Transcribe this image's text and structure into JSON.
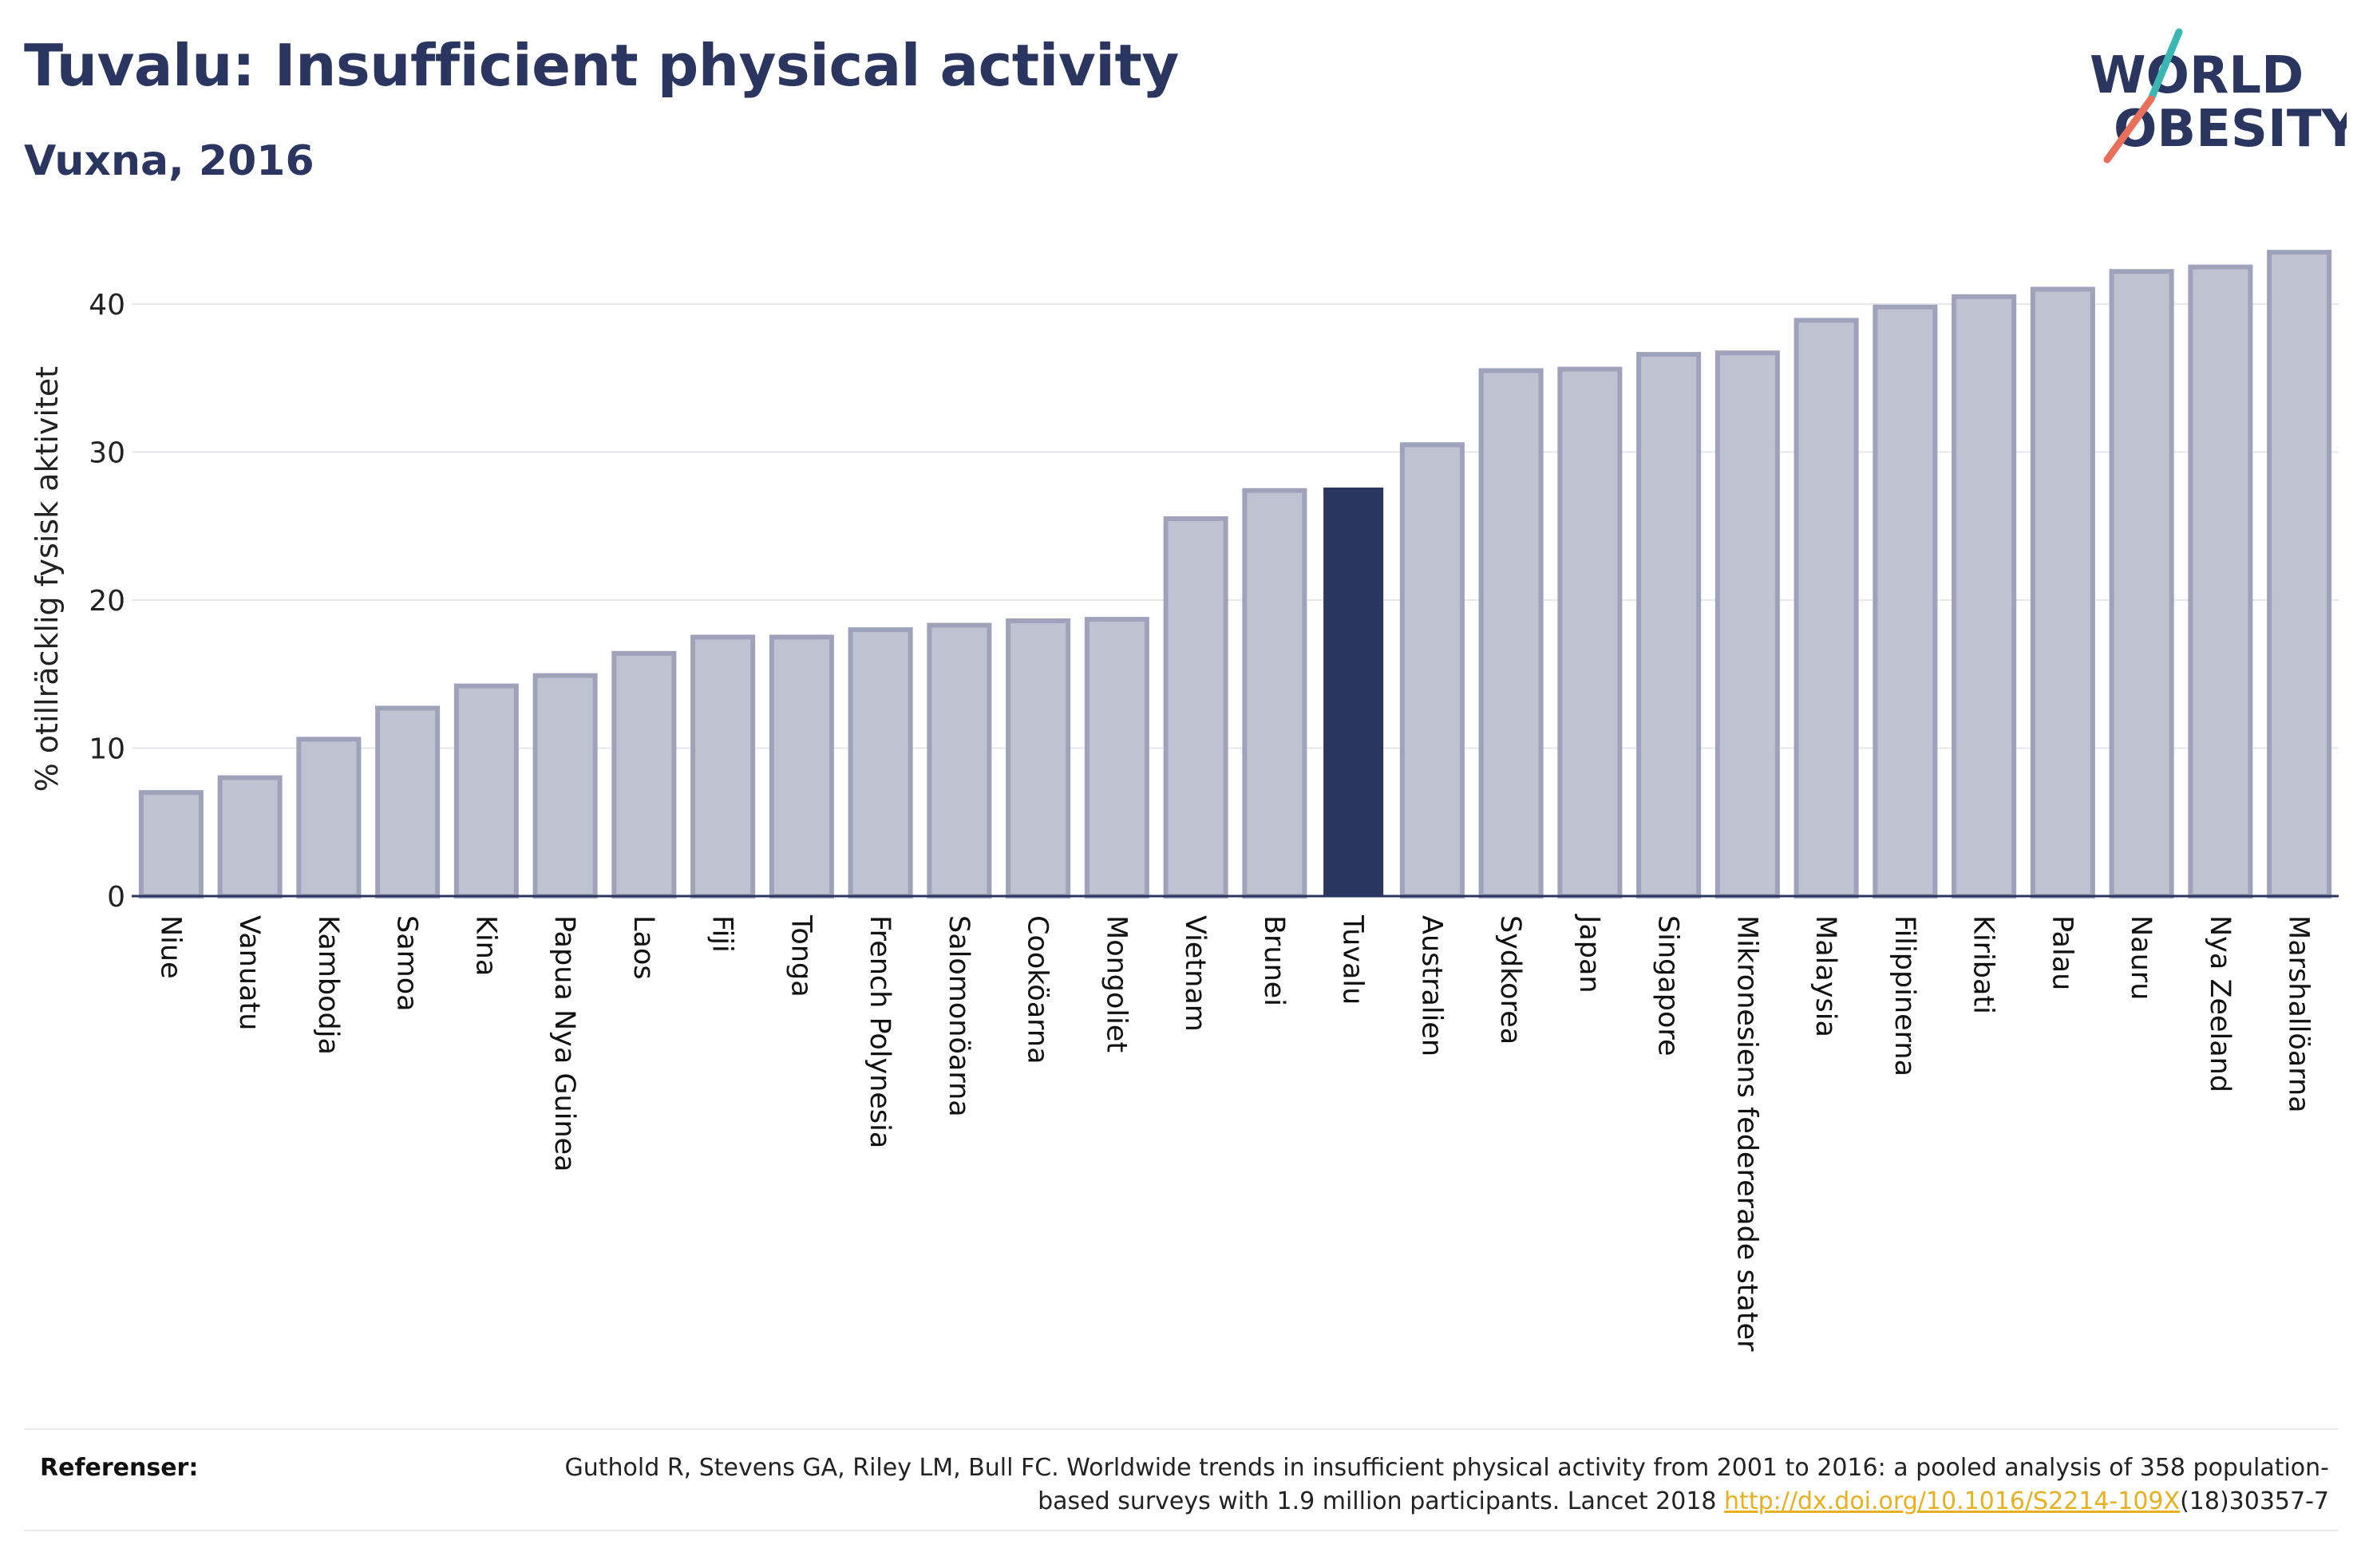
{
  "header": {
    "title": "Tuvalu: Insufficient physical activity",
    "subtitle": "Vuxna, 2016"
  },
  "logo": {
    "line1": "WORLD",
    "line2": "OBESITY",
    "icon": "world-obesity-logo",
    "colors": {
      "text": "#2a3560",
      "slash_top": "#3bb7b3",
      "slash_bottom": "#e8705a"
    }
  },
  "chart_data": {
    "type": "bar",
    "title": "Tuvalu: Insufficient physical activity",
    "subtitle": "Vuxna, 2016",
    "ylabel": "% otillräcklig fysisk aktivitet",
    "xlabel": "",
    "ylim": [
      0,
      45
    ],
    "yticks": [
      0,
      10,
      20,
      30,
      40
    ],
    "grid": true,
    "highlight": "Tuvalu",
    "colors": {
      "bar": "#bfc2d1",
      "bar_border": "#9ea3bb",
      "highlight": "#2a3560"
    },
    "categories": [
      "Niue",
      "Vanuatu",
      "Kambodja",
      "Samoa",
      "Kina",
      "Papua Nya Guinea",
      "Laos",
      "Fiji",
      "Tonga",
      "French Polynesia",
      "Salomonöarna",
      "Cooköarna",
      "Mongoliet",
      "Vietnam",
      "Brunei",
      "Tuvalu",
      "Australien",
      "Sydkorea",
      "Japan",
      "Singapore",
      "Mikronesiens federerade stater",
      "Malaysia",
      "Filippinerna",
      "Kiribati",
      "Palau",
      "Nauru",
      "Nya Zeeland",
      "Marshallöarna"
    ],
    "values": [
      7.0,
      8.0,
      10.6,
      12.7,
      14.2,
      14.9,
      16.4,
      17.5,
      17.5,
      18.0,
      18.3,
      18.6,
      18.7,
      25.5,
      27.4,
      27.6,
      30.5,
      35.5,
      35.6,
      36.6,
      36.7,
      38.9,
      39.8,
      40.5,
      41.0,
      42.2,
      42.5,
      43.5
    ]
  },
  "references": {
    "label": "Referenser:",
    "text_before": "Guthold R, Stevens GA, Riley LM, Bull FC. Worldwide trends in insufficient physical activity from 2001 to 2016: a pooled analysis of 358 population-based surveys with 1.9 million participants. Lancet 2018 ",
    "link": "http://dx.doi.org/10.1016/S2214-109X",
    "text_after": "(18)30357-7"
  }
}
